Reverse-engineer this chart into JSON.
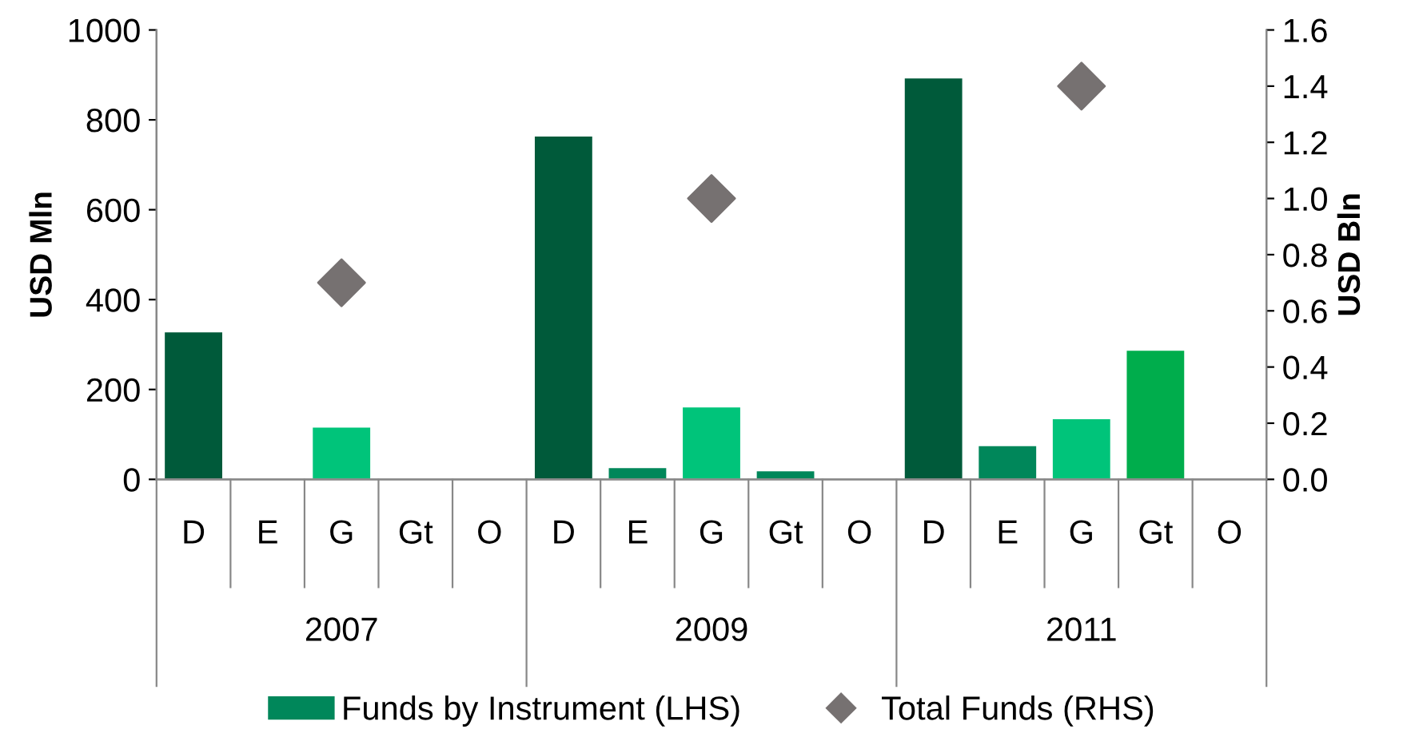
{
  "chart_data": {
    "type": "bar",
    "categories": [
      "D",
      "E",
      "G",
      "Gt",
      "O",
      "D",
      "E",
      "G",
      "Gt",
      "O",
      "D",
      "E",
      "G",
      "Gt",
      "O"
    ],
    "series": [
      {
        "name": "Funds by Instrument (LHS)",
        "color": "#00875a",
        "colors": [
          "#005a3a",
          "#00875a",
          "#00c47a",
          "#00ad4c",
          "#00875a",
          "#005a3a",
          "#00875a",
          "#00c47a",
          "#00875a",
          "#00875a",
          "#005a3a",
          "#00875a",
          "#00c47a",
          "#00ad4c",
          "#00875a"
        ],
        "values": [
          329,
          null,
          117,
          null,
          null,
          765,
          27,
          162,
          20,
          null,
          894,
          76,
          136,
          288,
          null
        ]
      },
      {
        "name": "Total Funds (RHS)",
        "type": "scatter",
        "axis": "y2",
        "marker": "diamond",
        "color": "#767171",
        "values": [
          null,
          null,
          0.7,
          null,
          null,
          null,
          null,
          1.0,
          null,
          null,
          null,
          null,
          1.4,
          null,
          null
        ]
      }
    ],
    "annotations": [
      "2007",
      "2009",
      "2011"
    ],
    "ylabel": "USD Mln",
    "y2label": "USD Bln",
    "ylim": [
      0,
      1000
    ],
    "yticks": [
      0,
      200,
      400,
      600,
      800,
      1000
    ],
    "y2lim": [
      0,
      1.6
    ],
    "y2ticks": [
      {
        "value": 0,
        "label": "0.0"
      },
      {
        "value": 0.2,
        "label": "0.2"
      },
      {
        "value": 0.4,
        "label": "0.4"
      },
      {
        "value": 0.6,
        "label": "0.6"
      },
      {
        "value": 0.8,
        "label": "0.8"
      },
      {
        "value": 1.0,
        "label": "1.0"
      },
      {
        "value": 1.2,
        "label": "1.2"
      },
      {
        "value": 1.4,
        "label": "1.4"
      },
      {
        "value": 1.6,
        "label": "1.6"
      }
    ],
    "grid": false,
    "legend": "bottom"
  }
}
